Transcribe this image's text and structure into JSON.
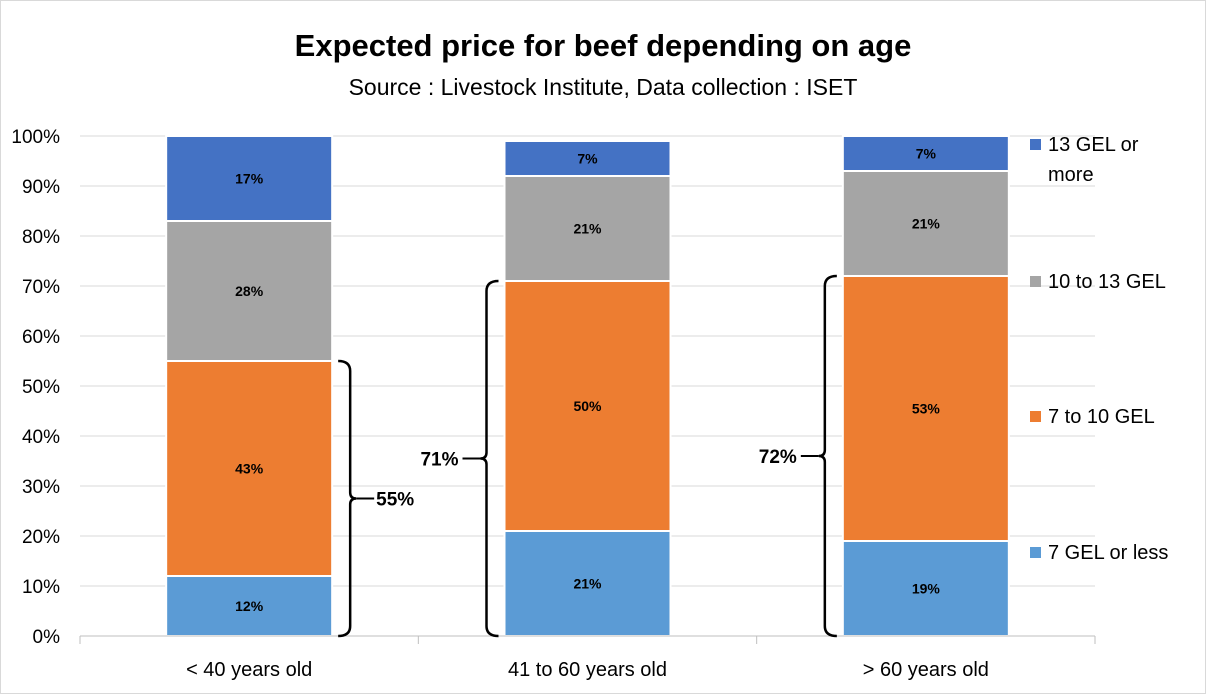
{
  "chart_data": {
    "type": "bar",
    "stacked": true,
    "title": "Expected price for beef depending on age",
    "subtitle": "Source : Livestock Institute, Data collection : ISET",
    "categories": [
      "< 40 years old",
      "41 to 60 years old",
      "> 60 years old"
    ],
    "series": [
      {
        "name": "7 GEL or less",
        "values": [
          12,
          21,
          19
        ],
        "labels": [
          "12%",
          "21%",
          "19%"
        ],
        "color": "#5b9bd5"
      },
      {
        "name": "7 to 10 GEL",
        "values": [
          43,
          50,
          53
        ],
        "labels": [
          "43%",
          "50%",
          "53%"
        ],
        "color": "#ed7d31"
      },
      {
        "name": "10 to 13 GEL",
        "values": [
          28,
          21,
          21
        ],
        "labels": [
          "28%",
          "21%",
          "21%"
        ],
        "color": "#a5a5a5"
      },
      {
        "name": "13 GEL or more",
        "values": [
          17,
          7,
          7
        ],
        "labels": [
          "17%",
          "7%",
          "7%"
        ],
        "color": "#4472c4"
      }
    ],
    "y_ticks": [
      "0%",
      "10%",
      "20%",
      "30%",
      "40%",
      "50%",
      "60%",
      "70%",
      "80%",
      "90%",
      "100%"
    ],
    "ylim": [
      0,
      100
    ],
    "grid": true,
    "legend_position": "right",
    "annotations": [
      {
        "label": "55%",
        "category": "< 40 years old",
        "from": 0,
        "to": 55,
        "side": "right"
      },
      {
        "label": "71%",
        "category": "41 to 60 years old",
        "from": 0,
        "to": 71,
        "side": "left"
      },
      {
        "label": "72%",
        "category": "> 60 years old",
        "from": 0,
        "to": 72,
        "side": "left"
      }
    ]
  }
}
